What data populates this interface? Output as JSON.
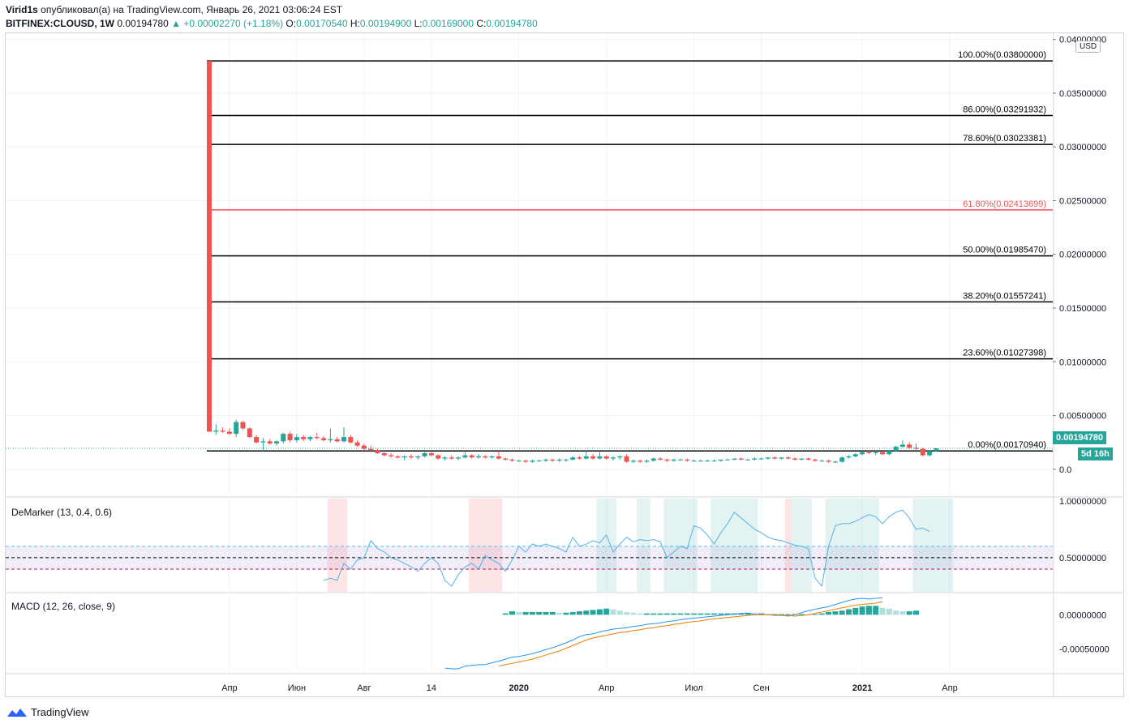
{
  "header": {
    "author": "Virid1s",
    "published_text": "опубликовал(а) на TradingView.com, Январь 26, 2021 03:06:24 EST",
    "symbol": "BITFINEX:CLOUSD, 1W",
    "last": "0.00194780",
    "change": "▲ +0.00002270 (+1.18%)",
    "o_label": "O:",
    "o_value": "0.00170540",
    "h_label": "H:",
    "h_value": "0.00194900",
    "l_label": "L:",
    "l_value": "0.00169000",
    "c_label": "C:",
    "c_value": "0.00194780"
  },
  "currency_button": "USD",
  "last_price_badge": "0.00194780",
  "countdown_badge": "5d 16h",
  "colors": {
    "up": "#26a69a",
    "down": "#ef5350",
    "fib_line": "#000000",
    "fib_618": "#ef5350",
    "demarker": "#4fb3e8",
    "macd": "#2196f3",
    "signal": "#f57c00",
    "grid": "#f0f3fa"
  },
  "chart_data": [
    {
      "type": "candlestick",
      "x_ticks": [
        "Апр",
        "Июн",
        "Авг",
        "14",
        "2020",
        "Апр",
        "Июл",
        "Сен",
        "2021",
        "Апр"
      ],
      "y_ticks": [
        "0.04000000",
        "0.03500000",
        "0.03000000",
        "0.02500000",
        "0.02000000",
        "0.01500000",
        "0.01000000",
        "0.00500000",
        "0.0"
      ],
      "ylim": [
        -0.0025,
        0.0405
      ],
      "fib_levels": [
        {
          "label": "100.00%(0.03800000)",
          "value": 0.038,
          "color": "#000000"
        },
        {
          "label": "86.00%(0.03291932)",
          "value": 0.03291932,
          "color": "#000000"
        },
        {
          "label": "78.60%(0.03023381)",
          "value": 0.03023381,
          "color": "#000000"
        },
        {
          "label": "61.80%(0.02413699)",
          "value": 0.02413699,
          "color": "#ef5350"
        },
        {
          "label": "50.00%(0.01985470)",
          "value": 0.0198547,
          "color": "#000000"
        },
        {
          "label": "38.20%(0.01557241)",
          "value": 0.01557241,
          "color": "#000000"
        },
        {
          "label": "23.60%(0.01027398)",
          "value": 0.01027398,
          "color": "#000000"
        },
        {
          "label": "0.00%(0.00170940)",
          "value": 0.0017094,
          "color": "#000000"
        }
      ],
      "candles": [
        [
          0.038,
          0.038,
          0.0035,
          0.0035
        ],
        [
          0.0035,
          0.0042,
          0.0032,
          0.0036
        ],
        [
          0.0036,
          0.0039,
          0.0034,
          0.0035
        ],
        [
          0.0035,
          0.0038,
          0.0032,
          0.0033
        ],
        [
          0.0033,
          0.0046,
          0.003,
          0.0044
        ],
        [
          0.0044,
          0.0045,
          0.0037,
          0.0038
        ],
        [
          0.0038,
          0.0039,
          0.0029,
          0.003
        ],
        [
          0.003,
          0.0032,
          0.0024,
          0.0025
        ],
        [
          0.0025,
          0.0029,
          0.0017,
          0.0026
        ],
        [
          0.0026,
          0.0028,
          0.0023,
          0.0024
        ],
        [
          0.0024,
          0.0027,
          0.0022,
          0.0026
        ],
        [
          0.0026,
          0.0034,
          0.0024,
          0.0033
        ],
        [
          0.0033,
          0.0035,
          0.0025,
          0.0027
        ],
        [
          0.0027,
          0.0033,
          0.0025,
          0.003
        ],
        [
          0.003,
          0.0032,
          0.0026,
          0.0028
        ],
        [
          0.0028,
          0.0031,
          0.0026,
          0.003
        ],
        [
          0.003,
          0.0034,
          0.0028,
          0.0029
        ],
        [
          0.0029,
          0.0031,
          0.0026,
          0.0027
        ],
        [
          0.0027,
          0.0038,
          0.0025,
          0.0028
        ],
        [
          0.0028,
          0.003,
          0.0025,
          0.0026
        ],
        [
          0.0026,
          0.0039,
          0.0025,
          0.003
        ],
        [
          0.003,
          0.0032,
          0.0024,
          0.0025
        ],
        [
          0.0025,
          0.0027,
          0.0021,
          0.0022
        ],
        [
          0.0022,
          0.0024,
          0.0018,
          0.0019
        ],
        [
          0.0019,
          0.0022,
          0.0017,
          0.0018
        ],
        [
          0.0018,
          0.0019,
          0.0014,
          0.0015
        ],
        [
          0.0015,
          0.0016,
          0.0012,
          0.0013
        ],
        [
          0.0013,
          0.0015,
          0.0011,
          0.0012
        ],
        [
          0.0012,
          0.0013,
          0.001,
          0.0011
        ],
        [
          0.0011,
          0.0013,
          0.0008,
          0.0012
        ],
        [
          0.0012,
          0.0014,
          0.001,
          0.0011
        ],
        [
          0.0011,
          0.0013,
          0.0009,
          0.0012
        ],
        [
          0.0012,
          0.0016,
          0.0011,
          0.0015
        ],
        [
          0.0015,
          0.0016,
          0.0012,
          0.0013
        ],
        [
          0.0013,
          0.0014,
          0.0009,
          0.001
        ],
        [
          0.001,
          0.0012,
          0.0008,
          0.0011
        ],
        [
          0.0011,
          0.0013,
          0.0009,
          0.001
        ],
        [
          0.001,
          0.0012,
          0.0008,
          0.0011
        ],
        [
          0.0011,
          0.0016,
          0.001,
          0.0013
        ],
        [
          0.0013,
          0.0014,
          0.001,
          0.0011
        ],
        [
          0.0011,
          0.0014,
          0.001,
          0.0012
        ],
        [
          0.0012,
          0.0013,
          0.001,
          0.0011
        ],
        [
          0.0011,
          0.0013,
          0.001,
          0.0012
        ],
        [
          0.0012,
          0.0017,
          0.0009,
          0.001
        ],
        [
          0.001,
          0.0011,
          0.0008,
          0.0009
        ],
        [
          0.0009,
          0.001,
          0.0007,
          0.0008
        ],
        [
          0.0008,
          0.0009,
          0.0007,
          0.0008
        ],
        [
          0.0008,
          0.0009,
          0.0006,
          0.0007
        ],
        [
          0.0007,
          0.0009,
          0.0006,
          0.0008
        ],
        [
          0.0008,
          0.0009,
          0.0007,
          0.0008
        ],
        [
          0.0008,
          0.001,
          0.0007,
          0.0009
        ],
        [
          0.0009,
          0.001,
          0.0007,
          0.0008
        ],
        [
          0.0008,
          0.001,
          0.0007,
          0.0009
        ],
        [
          0.0009,
          0.001,
          0.0007,
          0.0009
        ],
        [
          0.0009,
          0.0012,
          0.0008,
          0.0011
        ],
        [
          0.0011,
          0.0012,
          0.0009,
          0.001
        ],
        [
          0.001,
          0.0017,
          0.0009,
          0.0012
        ],
        [
          0.0012,
          0.0014,
          0.0009,
          0.001
        ],
        [
          0.001,
          0.0016,
          0.0009,
          0.0012
        ],
        [
          0.0012,
          0.0013,
          0.0009,
          0.001
        ],
        [
          0.001,
          0.0012,
          0.0008,
          0.0011
        ],
        [
          0.0011,
          0.0013,
          0.0009,
          0.0012
        ],
        [
          0.0012,
          0.0014,
          0.0006,
          0.0007
        ],
        [
          0.0007,
          0.0009,
          0.0006,
          0.0008
        ],
        [
          0.0008,
          0.0009,
          0.0006,
          0.0007
        ],
        [
          0.0007,
          0.0009,
          0.0006,
          0.0008
        ],
        [
          0.0008,
          0.0011,
          0.0007,
          0.001
        ],
        [
          0.001,
          0.0011,
          0.0008,
          0.0009
        ],
        [
          0.0009,
          0.001,
          0.0007,
          0.0008
        ],
        [
          0.0008,
          0.001,
          0.0007,
          0.0009
        ],
        [
          0.0009,
          0.001,
          0.0008,
          0.0009
        ],
        [
          0.0009,
          0.001,
          0.0007,
          0.0008
        ],
        [
          0.0008,
          0.0009,
          0.0007,
          0.0008
        ],
        [
          0.0008,
          0.0009,
          0.0007,
          0.0008
        ],
        [
          0.0008,
          0.0009,
          0.0007,
          0.0008
        ],
        [
          0.0008,
          0.0009,
          0.0007,
          0.0008
        ],
        [
          0.0008,
          0.0009,
          0.0007,
          0.0009
        ],
        [
          0.0009,
          0.001,
          0.0008,
          0.0009
        ],
        [
          0.0009,
          0.001,
          0.0008,
          0.001
        ],
        [
          0.001,
          0.0011,
          0.0008,
          0.0009
        ],
        [
          0.0009,
          0.001,
          0.0008,
          0.0009
        ],
        [
          0.0009,
          0.0011,
          0.0008,
          0.001
        ],
        [
          0.001,
          0.0011,
          0.0009,
          0.001
        ],
        [
          0.001,
          0.0011,
          0.0009,
          0.0011
        ],
        [
          0.0011,
          0.0012,
          0.0009,
          0.001
        ],
        [
          0.001,
          0.0011,
          0.0009,
          0.0011
        ],
        [
          0.0011,
          0.0012,
          0.0009,
          0.001
        ],
        [
          0.001,
          0.0011,
          0.0008,
          0.0009
        ],
        [
          0.0009,
          0.001,
          0.0008,
          0.001
        ],
        [
          0.001,
          0.0011,
          0.0008,
          0.0009
        ],
        [
          0.0009,
          0.001,
          0.0007,
          0.0008
        ],
        [
          0.0008,
          0.0009,
          0.0007,
          0.0008
        ],
        [
          0.0008,
          0.0009,
          0.0006,
          0.0007
        ],
        [
          0.0007,
          0.0008,
          0.0006,
          0.0007
        ],
        [
          0.0007,
          0.0012,
          0.0006,
          0.0011
        ],
        [
          0.0011,
          0.0013,
          0.001,
          0.0012
        ],
        [
          0.0012,
          0.0015,
          0.0011,
          0.0014
        ],
        [
          0.0014,
          0.0017,
          0.0013,
          0.0016
        ],
        [
          0.0016,
          0.0018,
          0.0014,
          0.0015
        ],
        [
          0.0015,
          0.0017,
          0.0013,
          0.0016
        ],
        [
          0.0016,
          0.0017,
          0.0013,
          0.0014
        ],
        [
          0.0014,
          0.0018,
          0.0013,
          0.0017
        ],
        [
          0.0017,
          0.0022,
          0.0016,
          0.0021
        ],
        [
          0.0021,
          0.0027,
          0.002,
          0.0023
        ],
        [
          0.0023,
          0.0025,
          0.0019,
          0.002
        ],
        [
          0.002,
          0.0024,
          0.0018,
          0.0019
        ],
        [
          0.0019,
          0.002,
          0.0012,
          0.0013
        ],
        [
          0.0013,
          0.0018,
          0.0012,
          0.0017
        ],
        [
          0.0017,
          0.001949,
          0.00169,
          0.0019478
        ]
      ]
    },
    {
      "type": "line",
      "title": "DeMarker (13, 0.4, 0.6)",
      "y_ticks": [
        "1.00000000",
        "0.50000000"
      ],
      "ylim": [
        0.2,
        1.02
      ],
      "upper_band": 0.6,
      "lower_band": 0.4,
      "midline": 0.5,
      "start_index": 17,
      "values": [
        0.3,
        0.32,
        0.3,
        0.45,
        0.4,
        0.48,
        0.5,
        0.65,
        0.58,
        0.55,
        0.5,
        0.48,
        0.45,
        0.42,
        0.38,
        0.45,
        0.5,
        0.45,
        0.3,
        0.25,
        0.35,
        0.42,
        0.45,
        0.4,
        0.52,
        0.48,
        0.45,
        0.38,
        0.48,
        0.6,
        0.55,
        0.62,
        0.6,
        0.62,
        0.6,
        0.58,
        0.55,
        0.68,
        0.6,
        0.62,
        0.65,
        0.63,
        0.7,
        0.55,
        0.62,
        0.68,
        0.64,
        0.66,
        0.65,
        0.66,
        0.64,
        0.5,
        0.55,
        0.6,
        0.58,
        0.78,
        0.76,
        0.7,
        0.62,
        0.72,
        0.8,
        0.9,
        0.85,
        0.8,
        0.75,
        0.72,
        0.68,
        0.66,
        0.65,
        0.63,
        0.61,
        0.6,
        0.58,
        0.32,
        0.25,
        0.6,
        0.78,
        0.8,
        0.8,
        0.82,
        0.85,
        0.88,
        0.86,
        0.8,
        0.86,
        0.9,
        0.92,
        0.85,
        0.75,
        0.76,
        0.73
      ],
      "overbought_ranges": [
        [
          58,
          61
        ],
        [
          64,
          66
        ],
        [
          68,
          73
        ],
        [
          75,
          82
        ],
        [
          87,
          90
        ],
        [
          92,
          100
        ],
        [
          105,
          111
        ]
      ],
      "oversold_ranges": [
        [
          18,
          21
        ],
        [
          39,
          44
        ],
        [
          86,
          87
        ]
      ]
    },
    {
      "type": "line+histogram",
      "title": "MACD (12, 26, close, 9)",
      "y_ticks": [
        "0.00000000",
        "-0.00050000"
      ],
      "ylim": [
        -0.00085,
        0.0003
      ],
      "macd_start": 35,
      "macd": [
        -0.00078,
        -0.00079,
        -0.00079,
        -0.00075,
        -0.00074,
        -0.00073,
        -0.00073,
        -0.0007,
        -0.00068,
        -0.00065,
        -0.00062,
        -0.00061,
        -0.00059,
        -0.00057,
        -0.00054,
        -0.00051,
        -0.00048,
        -0.00045,
        -0.00041,
        -0.00037,
        -0.00032,
        -0.00029,
        -0.00028,
        -0.00025,
        -0.00023,
        -0.00021,
        -0.0002,
        -0.00019,
        -0.00017,
        -0.00016,
        -0.00014,
        -0.00013,
        -0.00012,
        -0.0001,
        -9e-05,
        -7e-05,
        -6e-05,
        -5e-05,
        -4e-05,
        -3e-05,
        -2e-05,
        -1e-05,
        0.0,
        1e-05,
        2e-05,
        2e-05,
        1e-05,
        0.0,
        0.0,
        -1e-05,
        -1e-05,
        -2e-05,
        0.0,
        3e-05,
        6e-05,
        8e-05,
        0.0001,
        0.00012,
        0.00015,
        0.00018,
        0.00021,
        0.00023,
        0.00024,
        0.00023,
        0.00024,
        0.00025
      ],
      "signal_start": 43,
      "signal": [
        -0.00075,
        -0.00073,
        -0.00071,
        -0.00069,
        -0.00067,
        -0.00065,
        -0.00062,
        -0.00059,
        -0.00056,
        -0.00053,
        -0.00049,
        -0.00045,
        -0.00041,
        -0.00037,
        -0.00034,
        -0.00032,
        -0.0003,
        -0.00028,
        -0.00026,
        -0.00025,
        -0.00023,
        -0.00022,
        -0.0002,
        -0.00019,
        -0.00017,
        -0.00016,
        -0.00014,
        -0.00013,
        -0.00011,
        -0.0001,
        -9e-05,
        -7e-05,
        -6e-05,
        -5e-05,
        -4e-05,
        -3e-05,
        -2e-05,
        -1e-05,
        0.0,
        0.0,
        0.0,
        0.0,
        -1e-05,
        -1e-05,
        -2e-05,
        -1e-05,
        0.0,
        2e-05,
        4e-05,
        6e-05,
        8e-05,
        0.0001,
        0.00012,
        0.00014,
        0.00015,
        0.00016,
        0.00017,
        0.00019
      ],
      "hist_start": 44,
      "histogram": [
        2e-05,
        5e-05,
        4e-05,
        4e-05,
        4e-05,
        4e-05,
        4e-05,
        4e-05,
        3e-05,
        3e-05,
        4e-05,
        5e-05,
        6e-05,
        7e-05,
        8e-05,
        9e-05,
        8e-05,
        6e-05,
        4e-05,
        3e-05,
        2e-05,
        2e-05,
        2e-05,
        2e-05,
        2e-05,
        2e-05,
        2e-05,
        2e-05,
        2e-05,
        2e-05,
        2e-05,
        2e-05,
        2e-05,
        2e-05,
        2e-05,
        2e-05,
        3e-05,
        2e-05,
        2e-05,
        1e-05,
        1e-05,
        1e-05,
        1e-05,
        1e-05,
        1e-05,
        0.0,
        1e-05,
        2e-05,
        4e-05,
        5e-05,
        6e-05,
        8e-05,
        0.0001,
        0.00012,
        0.00013,
        0.00013,
        0.0001,
        9e-05,
        6e-05,
        5e-05,
        5e-05,
        6e-05
      ]
    }
  ],
  "footer": {
    "brand": "TradingView"
  }
}
